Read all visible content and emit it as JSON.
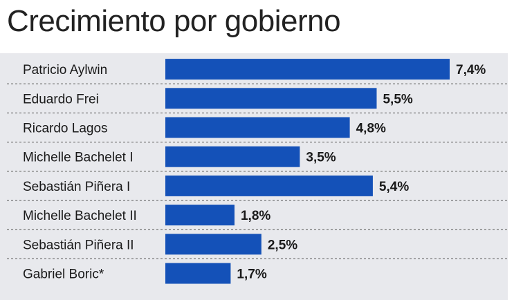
{
  "chart_data": {
    "type": "bar",
    "orientation": "horizontal",
    "title": "Crecimiento por gobierno",
    "xlabel": "",
    "ylabel": "",
    "xlim": [
      0,
      7.4
    ],
    "grid": false,
    "legend": "none",
    "bar_color": "#1451b8",
    "panel_color": "#e8e9ed",
    "value_suffix": "%",
    "categories": [
      "Patricio Aylwin",
      "Eduardo Frei",
      "Ricardo Lagos",
      "Michelle Bachelet I",
      "Sebastián Piñera I",
      "Michelle Bachelet II",
      "Sebastián Piñera II",
      "Gabriel Boric*"
    ],
    "values": [
      7.4,
      5.5,
      4.8,
      3.5,
      5.4,
      1.8,
      2.5,
      1.7
    ],
    "value_labels": [
      "7,4%",
      "5,5%",
      "4,8%",
      "3,5%",
      "5,4%",
      "1,8%",
      "2,5%",
      "1,7%"
    ]
  }
}
